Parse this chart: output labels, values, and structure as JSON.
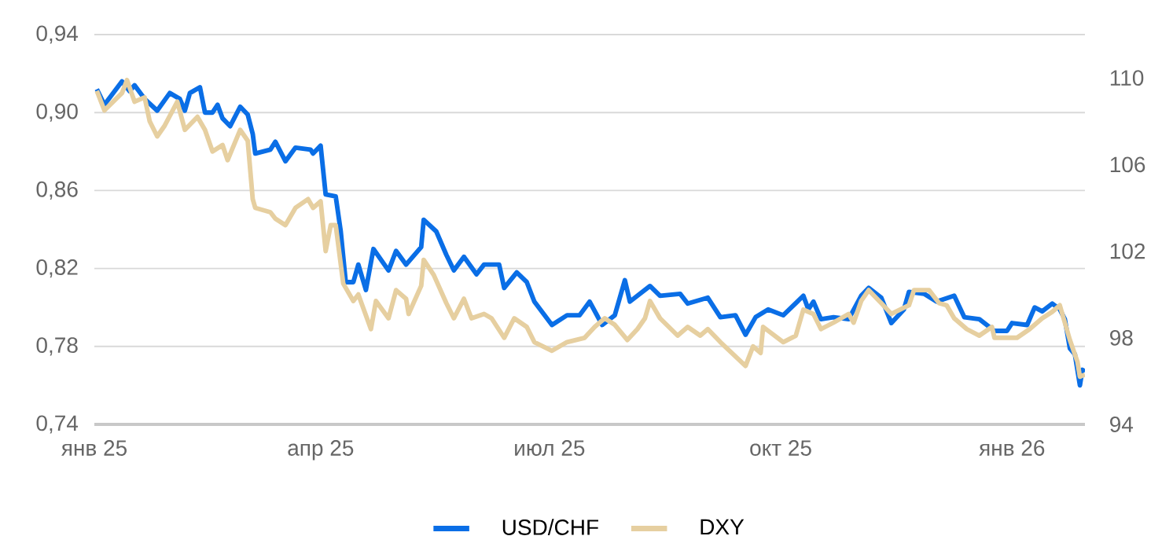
{
  "chart_data": {
    "type": "line",
    "xlim": [
      "2025-01-01",
      "2026-01-30"
    ],
    "xticks": [
      {
        "value": "2025-01-01",
        "label": "янв 25"
      },
      {
        "value": "2025-04-01",
        "label": "апр 25"
      },
      {
        "value": "2025-07-01",
        "label": "июл 25"
      },
      {
        "value": "2025-10-01",
        "label": "окт 25"
      },
      {
        "value": "2026-01-01",
        "label": "янв 26"
      }
    ],
    "ylim": [
      0.74,
      0.94
    ],
    "yticks": [
      {
        "value": 0.74,
        "label": "0,74"
      },
      {
        "value": 0.78,
        "label": "0,78"
      },
      {
        "value": 0.82,
        "label": "0,82"
      },
      {
        "value": 0.86,
        "label": "0,86"
      },
      {
        "value": 0.9,
        "label": "0,90"
      },
      {
        "value": 0.94,
        "label": "0,94"
      }
    ],
    "y2lim": [
      94,
      112
    ],
    "y2ticks": [
      94,
      98,
      102,
      106,
      110
    ],
    "grid": "y",
    "legend": "bottom",
    "line_style": "solid",
    "series": [
      {
        "name": "USD/CHF",
        "color": "#0a6ee6",
        "x": [
          "2025-01-02",
          "2025-01-05",
          "2025-01-12",
          "2025-01-15",
          "2025-01-17",
          "2025-01-21",
          "2025-01-26",
          "2025-01-31",
          "2025-02-04",
          "2025-02-06",
          "2025-02-08",
          "2025-02-12",
          "2025-02-14",
          "2025-02-17",
          "2025-02-19",
          "2025-02-21",
          "2025-02-24",
          "2025-02-28",
          "2025-03-03",
          "2025-03-05",
          "2025-03-06",
          "2025-03-12",
          "2025-03-14",
          "2025-03-18",
          "2025-03-22",
          "2025-03-28",
          "2025-03-29",
          "2025-04-01",
          "2025-04-03",
          "2025-04-07",
          "2025-04-09",
          "2025-04-11",
          "2025-04-14",
          "2025-04-16",
          "2025-04-19",
          "2025-04-22",
          "2025-04-28",
          "2025-05-01",
          "2025-05-05",
          "2025-05-11",
          "2025-05-12",
          "2025-05-17",
          "2025-05-21",
          "2025-05-24",
          "2025-05-28",
          "2025-06-02",
          "2025-06-05",
          "2025-06-11",
          "2025-06-13",
          "2025-06-18",
          "2025-06-22",
          "2025-06-25",
          "2025-07-02",
          "2025-07-08",
          "2025-07-13",
          "2025-07-17",
          "2025-07-22",
          "2025-07-27",
          "2025-07-31",
          "2025-08-02",
          "2025-08-10",
          "2025-08-14",
          "2025-08-22",
          "2025-08-25",
          "2025-09-02",
          "2025-09-07",
          "2025-09-13",
          "2025-09-17",
          "2025-09-21",
          "2025-09-26",
          "2025-10-02",
          "2025-10-10",
          "2025-10-12",
          "2025-10-14",
          "2025-10-17",
          "2025-10-22",
          "2025-10-28",
          "2025-11-02",
          "2025-11-05",
          "2025-11-10",
          "2025-11-14",
          "2025-11-19",
          "2025-11-21",
          "2025-11-27",
          "2025-12-02",
          "2025-12-09",
          "2025-12-13",
          "2025-12-19",
          "2025-12-25",
          "2025-12-30",
          "2026-01-01",
          "2026-01-07",
          "2026-01-10",
          "2026-01-13",
          "2026-01-17",
          "2026-01-20",
          "2026-01-22",
          "2026-01-24",
          "2026-01-26",
          "2026-01-28",
          "2026-01-29",
          "2026-01-30"
        ],
        "values": [
          0.912,
          0.904,
          0.916,
          0.911,
          0.914,
          0.907,
          0.901,
          0.91,
          0.907,
          0.901,
          0.91,
          0.913,
          0.9,
          0.9,
          0.904,
          0.897,
          0.893,
          0.903,
          0.899,
          0.889,
          0.879,
          0.881,
          0.885,
          0.875,
          0.882,
          0.881,
          0.879,
          0.883,
          0.858,
          0.857,
          0.839,
          0.813,
          0.813,
          0.822,
          0.809,
          0.83,
          0.819,
          0.829,
          0.822,
          0.831,
          0.845,
          0.839,
          0.827,
          0.819,
          0.826,
          0.817,
          0.822,
          0.822,
          0.81,
          0.818,
          0.813,
          0.803,
          0.791,
          0.796,
          0.796,
          0.803,
          0.791,
          0.796,
          0.814,
          0.803,
          0.811,
          0.806,
          0.807,
          0.802,
          0.805,
          0.795,
          0.796,
          0.786,
          0.795,
          0.799,
          0.796,
          0.806,
          0.799,
          0.803,
          0.794,
          0.795,
          0.794,
          0.806,
          0.81,
          0.805,
          0.792,
          0.799,
          0.808,
          0.807,
          0.803,
          0.806,
          0.795,
          0.794,
          0.788,
          0.788,
          0.792,
          0.791,
          0.8,
          0.798,
          0.802,
          0.799,
          0.794,
          0.779,
          0.776,
          0.76,
          0.768,
          0.767
        ]
      },
      {
        "name": "DXY",
        "color": "#e6cfa0",
        "axis": "y2",
        "x": [
          "2025-01-02",
          "2025-01-05",
          "2025-01-12",
          "2025-01-14",
          "2025-01-17",
          "2025-01-21",
          "2025-01-23",
          "2025-01-26",
          "2025-01-29",
          "2025-02-03",
          "2025-02-06",
          "2025-02-11",
          "2025-02-14",
          "2025-02-17",
          "2025-02-21",
          "2025-02-23",
          "2025-02-28",
          "2025-03-03",
          "2025-03-05",
          "2025-03-06",
          "2025-03-12",
          "2025-03-14",
          "2025-03-18",
          "2025-03-22",
          "2025-03-27",
          "2025-03-29",
          "2025-04-01",
          "2025-04-03",
          "2025-04-05",
          "2025-04-07",
          "2025-04-10",
          "2025-04-14",
          "2025-04-16",
          "2025-04-21",
          "2025-04-23",
          "2025-04-28",
          "2025-05-01",
          "2025-05-05",
          "2025-05-06",
          "2025-05-11",
          "2025-05-12",
          "2025-05-16",
          "2025-05-21",
          "2025-05-24",
          "2025-05-28",
          "2025-05-31",
          "2025-06-05",
          "2025-06-08",
          "2025-06-13",
          "2025-06-17",
          "2025-06-22",
          "2025-06-25",
          "2025-07-02",
          "2025-07-08",
          "2025-07-15",
          "2025-07-19",
          "2025-07-23",
          "2025-07-27",
          "2025-08-01",
          "2025-08-05",
          "2025-08-08",
          "2025-08-10",
          "2025-08-14",
          "2025-08-21",
          "2025-08-25",
          "2025-08-30",
          "2025-09-02",
          "2025-09-07",
          "2025-09-17",
          "2025-09-20",
          "2025-09-23",
          "2025-09-24",
          "2025-10-02",
          "2025-10-07",
          "2025-10-10",
          "2025-10-14",
          "2025-10-17",
          "2025-10-22",
          "2025-10-28",
          "2025-10-30",
          "2025-11-02",
          "2025-11-05",
          "2025-11-10",
          "2025-11-14",
          "2025-11-21",
          "2025-11-23",
          "2025-11-29",
          "2025-12-03",
          "2025-12-06",
          "2025-12-09",
          "2025-12-14",
          "2025-12-19",
          "2025-12-24",
          "2025-12-25",
          "2026-01-03",
          "2026-01-08",
          "2026-01-13",
          "2026-01-17",
          "2026-01-20",
          "2026-01-24",
          "2026-01-27",
          "2026-01-28",
          "2026-01-30"
        ],
        "values": [
          109.4,
          108.5,
          109.3,
          109.9,
          108.9,
          109.1,
          108.0,
          107.3,
          107.8,
          108.9,
          107.6,
          108.2,
          107.6,
          106.6,
          106.9,
          106.2,
          107.6,
          107.1,
          104.4,
          104.0,
          103.8,
          103.5,
          103.2,
          104.0,
          104.4,
          104.0,
          104.3,
          102.0,
          103.2,
          103.2,
          100.5,
          99.7,
          100.0,
          98.4,
          99.7,
          98.9,
          100.2,
          99.8,
          99.1,
          100.4,
          101.6,
          100.9,
          99.6,
          98.9,
          99.8,
          98.9,
          99.1,
          98.9,
          98.0,
          98.9,
          98.5,
          97.8,
          97.4,
          97.8,
          98.0,
          98.5,
          98.9,
          98.6,
          97.9,
          98.4,
          98.9,
          99.7,
          98.9,
          98.1,
          98.5,
          98.1,
          98.4,
          97.8,
          96.7,
          97.6,
          97.3,
          98.5,
          97.8,
          98.1,
          99.3,
          99.1,
          98.4,
          98.7,
          99.1,
          98.7,
          99.7,
          100.2,
          99.6,
          99.1,
          99.5,
          100.2,
          100.2,
          99.6,
          99.5,
          98.9,
          98.4,
          98.1,
          98.5,
          98.0,
          98.0,
          98.4,
          98.9,
          99.2,
          99.5,
          97.9,
          96.9,
          96.2,
          96.3
        ]
      }
    ]
  }
}
